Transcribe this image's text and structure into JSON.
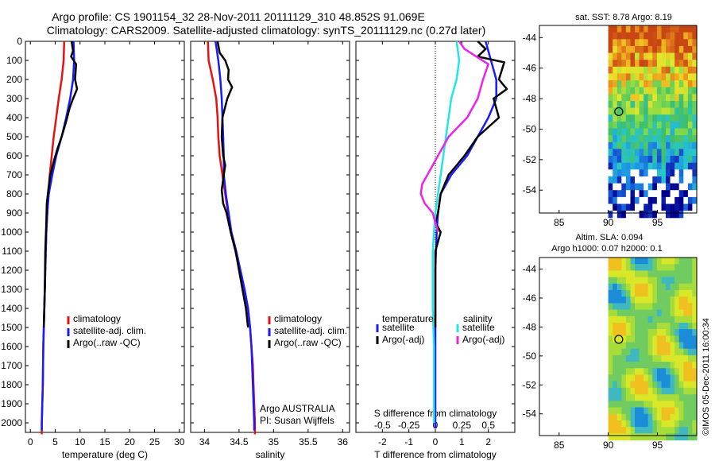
{
  "title": {
    "line1": "Argo profile: CS 1901154_32 28-Nov-2011 20111129_310 48.852S 91.069E",
    "line2": "Climatology: CARS2009. Satellite-adjusted climatology: synTS_20111129.nc (0.27d later)"
  },
  "colors": {
    "climatology": "#e81010",
    "satellite": "#1a1aff",
    "argo": "#000000",
    "cyan": "#22e6e6",
    "magenta": "#ee22ee"
  },
  "legend": {
    "climatology": "climatology",
    "satellite_adj": "satellite-adj. clim.",
    "argo_raw": "Argo(..raw -QC)",
    "temperature_head": "temperature",
    "salinity_head": "salinity",
    "satellite": "satellite",
    "argo_adj": "Argo(-adj)"
  },
  "annotations": {
    "argo_country": "Argo AUSTRALIA",
    "pi_name": "PI: Susan Wijffels",
    "sst": "sat. SST: 8.78 Argo: 8.19",
    "sla": "Altim. SLA: 0.094",
    "heights": "Argo h1000: 0.07 h2000: 0.1",
    "credit": "©IMOS 05-Dec-2011 16:00:34"
  },
  "chart_data": [
    {
      "id": "temperature",
      "type": "line",
      "xlabel": "temperature (deg C)",
      "ylabel": "",
      "xlim": [
        -1,
        31
      ],
      "ylim": [
        2050,
        0
      ],
      "xticks": [
        0,
        5,
        10,
        15,
        20,
        25,
        30
      ],
      "xtick_labels": [
        "0",
        "5",
        "10",
        "15",
        "20",
        "25",
        "30"
      ],
      "yticks": [
        0,
        100,
        200,
        300,
        400,
        500,
        600,
        700,
        800,
        900,
        1000,
        1100,
        1200,
        1300,
        1400,
        1500,
        1600,
        1700,
        1800,
        1900,
        2000
      ],
      "ytick_labels": [
        "0",
        "100",
        "200",
        "300",
        "400",
        "500",
        "600",
        "700",
        "800",
        "900",
        "1000",
        "1100",
        "1200",
        "1300",
        "1400",
        "1500",
        "1600",
        "1700",
        "1800",
        "1900",
        "2000"
      ],
      "series": [
        {
          "name": "climatology",
          "color_key": "climatology",
          "points": [
            [
              6.8,
              0
            ],
            [
              6.7,
              100
            ],
            [
              6.3,
              200
            ],
            [
              5.7,
              300
            ],
            [
              5.2,
              400
            ],
            [
              4.7,
              500
            ],
            [
              4.3,
              600
            ],
            [
              3.9,
              700
            ],
            [
              3.6,
              800
            ],
            [
              3.4,
              900
            ],
            [
              3.2,
              1000
            ],
            [
              3.0,
              1200
            ],
            [
              2.8,
              1400
            ],
            [
              2.6,
              1600
            ],
            [
              2.5,
              1800
            ],
            [
              2.3,
              2000
            ],
            [
              2.3,
              2060
            ]
          ]
        },
        {
          "name": "satellite-adj. clim.",
          "color_key": "satellite",
          "points": [
            [
              8.7,
              0
            ],
            [
              8.8,
              100
            ],
            [
              8.6,
              200
            ],
            [
              8.0,
              300
            ],
            [
              7.2,
              400
            ],
            [
              6.3,
              500
            ],
            [
              5.2,
              600
            ],
            [
              4.4,
              700
            ],
            [
              3.7,
              800
            ],
            [
              3.4,
              900
            ],
            [
              3.2,
              1000
            ],
            [
              3.0,
              1200
            ],
            [
              2.8,
              1400
            ],
            [
              2.6,
              1600
            ],
            [
              2.5,
              1800
            ],
            [
              2.3,
              2000
            ],
            [
              2.3,
              2040
            ]
          ]
        },
        {
          "name": "Argo(..raw -QC)",
          "color_key": "argo",
          "points": [
            [
              8.3,
              0
            ],
            [
              8.6,
              50
            ],
            [
              8.2,
              80
            ],
            [
              9.2,
              120
            ],
            [
              9.0,
              200
            ],
            [
              9.4,
              250
            ],
            [
              8.6,
              300
            ],
            [
              7.9,
              350
            ],
            [
              7.1,
              430
            ],
            [
              6.3,
              500
            ],
            [
              5.5,
              560
            ],
            [
              4.8,
              620
            ],
            [
              4.0,
              700
            ],
            [
              3.6,
              780
            ],
            [
              3.3,
              850
            ],
            [
              3.2,
              950
            ],
            [
              3.0,
              1100
            ],
            [
              2.9,
              1300
            ],
            [
              2.7,
              1500
            ]
          ]
        }
      ]
    },
    {
      "id": "salinity",
      "type": "line",
      "xlabel": "salinity",
      "ylabel": "",
      "xlim": [
        33.8,
        36.1
      ],
      "ylim": [
        2050,
        0
      ],
      "xticks": [
        34,
        34.5,
        35,
        35.5,
        36
      ],
      "xtick_labels": [
        "34",
        "34.5",
        "35",
        "35.5",
        "36"
      ],
      "series": [
        {
          "name": "climatology",
          "color_key": "climatology",
          "points": [
            [
              34.05,
              0
            ],
            [
              34.06,
              100
            ],
            [
              34.12,
              200
            ],
            [
              34.17,
              300
            ],
            [
              34.19,
              400
            ],
            [
              34.2,
              500
            ],
            [
              34.22,
              600
            ],
            [
              34.26,
              700
            ],
            [
              34.3,
              800
            ],
            [
              34.34,
              900
            ],
            [
              34.38,
              1000
            ],
            [
              34.45,
              1100
            ],
            [
              34.52,
              1200
            ],
            [
              34.58,
              1300
            ],
            [
              34.63,
              1400
            ],
            [
              34.66,
              1500
            ],
            [
              34.68,
              1600
            ],
            [
              34.7,
              1700
            ],
            [
              34.71,
              1800
            ],
            [
              34.72,
              1900
            ],
            [
              34.73,
              2000
            ],
            [
              34.73,
              2060
            ]
          ]
        },
        {
          "name": "satellite-adj. clim.",
          "color_key": "satellite",
          "points": [
            [
              34.16,
              0
            ],
            [
              34.2,
              100
            ],
            [
              34.23,
              200
            ],
            [
              34.25,
              300
            ],
            [
              34.26,
              400
            ],
            [
              34.27,
              500
            ],
            [
              34.28,
              600
            ],
            [
              34.28,
              700
            ],
            [
              34.31,
              800
            ],
            [
              34.35,
              900
            ],
            [
              34.39,
              1000
            ],
            [
              34.46,
              1100
            ],
            [
              34.52,
              1200
            ],
            [
              34.58,
              1300
            ],
            [
              34.63,
              1400
            ],
            [
              34.66,
              1500
            ],
            [
              34.68,
              1600
            ],
            [
              34.69,
              1700
            ],
            [
              34.7,
              1800
            ],
            [
              34.71,
              1900
            ],
            [
              34.72,
              2000
            ],
            [
              34.72,
              2040
            ]
          ]
        },
        {
          "name": "Argo(..raw -QC)",
          "color_key": "argo",
          "points": [
            [
              34.19,
              0
            ],
            [
              34.22,
              60
            ],
            [
              34.3,
              100
            ],
            [
              34.35,
              150
            ],
            [
              34.34,
              200
            ],
            [
              34.4,
              240
            ],
            [
              34.33,
              300
            ],
            [
              34.26,
              400
            ],
            [
              34.25,
              500
            ],
            [
              34.27,
              600
            ],
            [
              34.3,
              650
            ],
            [
              34.28,
              700
            ],
            [
              34.25,
              780
            ],
            [
              34.27,
              850
            ],
            [
              34.32,
              900
            ],
            [
              34.38,
              1000
            ],
            [
              34.45,
              1100
            ],
            [
              34.5,
              1200
            ],
            [
              34.55,
              1300
            ],
            [
              34.6,
              1400
            ],
            [
              34.63,
              1500
            ]
          ]
        }
      ]
    },
    {
      "id": "difference",
      "type": "line",
      "xlabel": "T difference from climatology",
      "xlabel_top": "S difference from climatology",
      "ylabel": "",
      "xlim": [
        -3,
        3
      ],
      "ylim": [
        2050,
        0
      ],
      "xticks": [
        -2,
        -1,
        0,
        1,
        2
      ],
      "xtick_labels": [
        "-2",
        "-1",
        "0",
        "1",
        "2"
      ],
      "sticks_labels": [
        "-0.5",
        "-0.25",
        "0",
        "0.25",
        "0.5"
      ],
      "sticks_positions": [
        -2,
        -1,
        0,
        1,
        2
      ],
      "series": [
        {
          "name": "temperature satellite",
          "color_key": "satellite",
          "points": [
            [
              1.9,
              0
            ],
            [
              2.1,
              100
            ],
            [
              2.3,
              200
            ],
            [
              2.3,
              300
            ],
            [
              2.0,
              400
            ],
            [
              1.6,
              500
            ],
            [
              1.2,
              600
            ],
            [
              0.6,
              700
            ],
            [
              0.2,
              800
            ],
            [
              0.1,
              900
            ],
            [
              0.05,
              1000
            ],
            [
              0.0,
              1200
            ],
            [
              0.0,
              1500
            ],
            [
              0.0,
              1800
            ],
            [
              0.0,
              2030
            ]
          ]
        },
        {
          "name": "temperature Argo(-adj)",
          "color_key": "argo",
          "points": [
            [
              1.6,
              0
            ],
            [
              1.9,
              40
            ],
            [
              1.6,
              80
            ],
            [
              2.6,
              110
            ],
            [
              2.4,
              200
            ],
            [
              2.7,
              250
            ],
            [
              2.2,
              300
            ],
            [
              2.4,
              400
            ],
            [
              1.6,
              500
            ],
            [
              1.1,
              600
            ],
            [
              0.5,
              700
            ],
            [
              0.2,
              800
            ],
            [
              0.1,
              900
            ],
            [
              0.0,
              950
            ],
            [
              0.2,
              1000
            ],
            [
              0.0,
              1100
            ],
            [
              0.0,
              1500
            ]
          ]
        },
        {
          "name": "salinity satellite",
          "color_key": "cyan",
          "points": [
            [
              0.8,
              0
            ],
            [
              0.9,
              100
            ],
            [
              0.8,
              200
            ],
            [
              0.6,
              300
            ],
            [
              0.5,
              400
            ],
            [
              0.4,
              500
            ],
            [
              0.3,
              600
            ],
            [
              0.2,
              700
            ],
            [
              0.1,
              800
            ],
            [
              0.0,
              900
            ],
            [
              -0.05,
              1000
            ],
            [
              -0.1,
              1100
            ],
            [
              -0.1,
              1200
            ],
            [
              -0.1,
              1400
            ],
            [
              -0.05,
              1600
            ],
            [
              -0.05,
              1800
            ],
            [
              -0.05,
              2000
            ]
          ]
        },
        {
          "name": "salinity Argo(-adj)",
          "color_key": "magenta",
          "points": [
            [
              0.9,
              0
            ],
            [
              1.1,
              40
            ],
            [
              2.0,
              120
            ],
            [
              1.8,
              200
            ],
            [
              1.6,
              300
            ],
            [
              1.2,
              400
            ],
            [
              0.5,
              500
            ],
            [
              0.1,
              600
            ],
            [
              -0.3,
              700
            ],
            [
              -0.5,
              750
            ],
            [
              -0.55,
              800
            ],
            [
              -0.4,
              850
            ],
            [
              -0.1,
              900
            ],
            [
              0.0,
              950
            ],
            [
              0.1,
              1000
            ]
          ]
        }
      ]
    },
    {
      "id": "sst-map",
      "type": "heatmap",
      "title": "sat. SST: 8.78 Argo: 8.19",
      "xlim": [
        83,
        99
      ],
      "ylim": [
        -55.5,
        -43.2
      ],
      "xticks": [
        85,
        90,
        95
      ],
      "xtick_labels": [
        "85",
        "90",
        "95"
      ],
      "yticks": [
        -44,
        -46,
        -48,
        -50,
        -52,
        -54
      ],
      "ytick_labels": [
        "-44",
        "-46",
        "-48",
        "-50",
        "-52",
        "-54"
      ],
      "data_x_range": [
        90,
        99
      ],
      "marker": {
        "lon": 91.069,
        "lat": -48.852
      }
    },
    {
      "id": "sla-map",
      "type": "heatmap",
      "title": "Altim. SLA: 0.094",
      "subtitle": "Argo h1000: 0.07 h2000: 0.1",
      "xlim": [
        83,
        99
      ],
      "ylim": [
        -55.5,
        -43.2
      ],
      "xticks": [
        85,
        90,
        95
      ],
      "xtick_labels": [
        "85",
        "90",
        "95"
      ],
      "yticks": [
        -44,
        -46,
        -48,
        -50,
        -52,
        -54
      ],
      "ytick_labels": [
        "-44",
        "-46",
        "-48",
        "-50",
        "-52",
        "-54"
      ],
      "data_x_range": [
        90,
        99
      ],
      "marker": {
        "lon": 91.069,
        "lat": -48.852
      }
    }
  ]
}
